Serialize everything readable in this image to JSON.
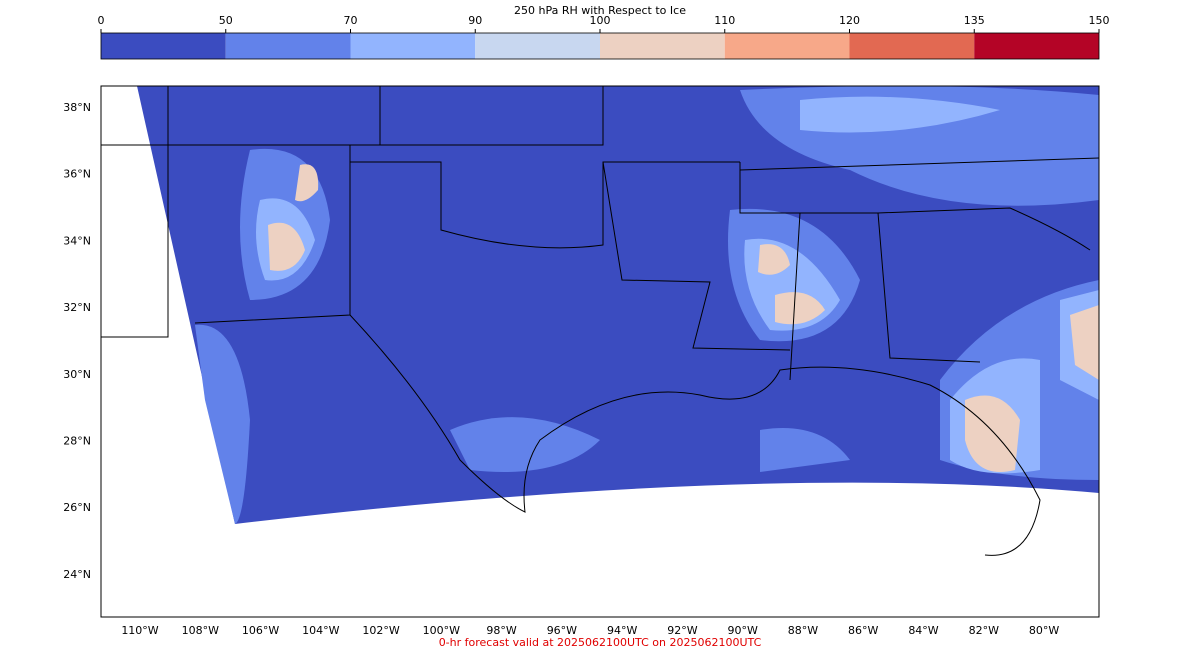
{
  "colorbar": {
    "title": "250 hPa RH with Respect to Ice",
    "ticks": [
      0,
      50,
      70,
      90,
      100,
      110,
      120,
      135,
      150
    ],
    "colors": [
      "#3b4cc0",
      "#6282ea",
      "#92b4fe",
      "#c8d7f0",
      "#edd1c2",
      "#f7a889",
      "#e26952",
      "#b40426"
    ]
  },
  "map": {
    "latitude_labels": [
      "38°N",
      "36°N",
      "34°N",
      "32°N",
      "30°N",
      "28°N",
      "26°N",
      "24°N"
    ],
    "longitude_labels": [
      "110°W",
      "108°W",
      "106°W",
      "104°W",
      "102°W",
      "100°W",
      "98°W",
      "96°W",
      "94°W",
      "92°W",
      "90°W",
      "88°W",
      "86°W",
      "84°W",
      "82°W",
      "80°W"
    ]
  },
  "footer": "0-hr forecast valid at 2025062100UTC on 2025062100UTC"
}
